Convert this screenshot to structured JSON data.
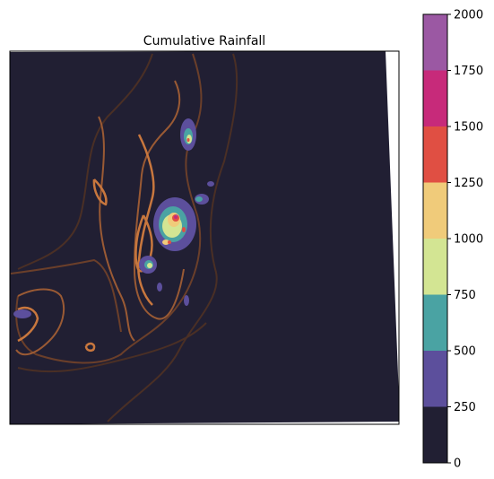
{
  "chart_data": {
    "type": "heatmap",
    "title": "Cumulative Rainfall",
    "xlabel": "",
    "ylabel": "",
    "colorbar": {
      "levels": [
        0,
        250,
        500,
        750,
        1000,
        1250,
        1500,
        1750,
        2000
      ],
      "tick_labels": [
        "0",
        "250",
        "500",
        "750",
        "1000",
        "1250",
        "1500",
        "1750",
        "2000"
      ],
      "colors": [
        "#211f33",
        "#5c4f9c",
        "#4aa3a3",
        "#d3e593",
        "#f0cb7a",
        "#e04f43",
        "#c72a7a",
        "#9b58a3"
      ]
    },
    "background_color": "#211f33",
    "terrain_contour_color": "#c8773e",
    "rainfall_maxima": [
      {
        "region": "north peak",
        "level_band": "1000-1500"
      },
      {
        "region": "central ridge peaks",
        "level_band": "1250-2000"
      },
      {
        "region": "west coast patch",
        "level_band": "250-500"
      }
    ]
  }
}
